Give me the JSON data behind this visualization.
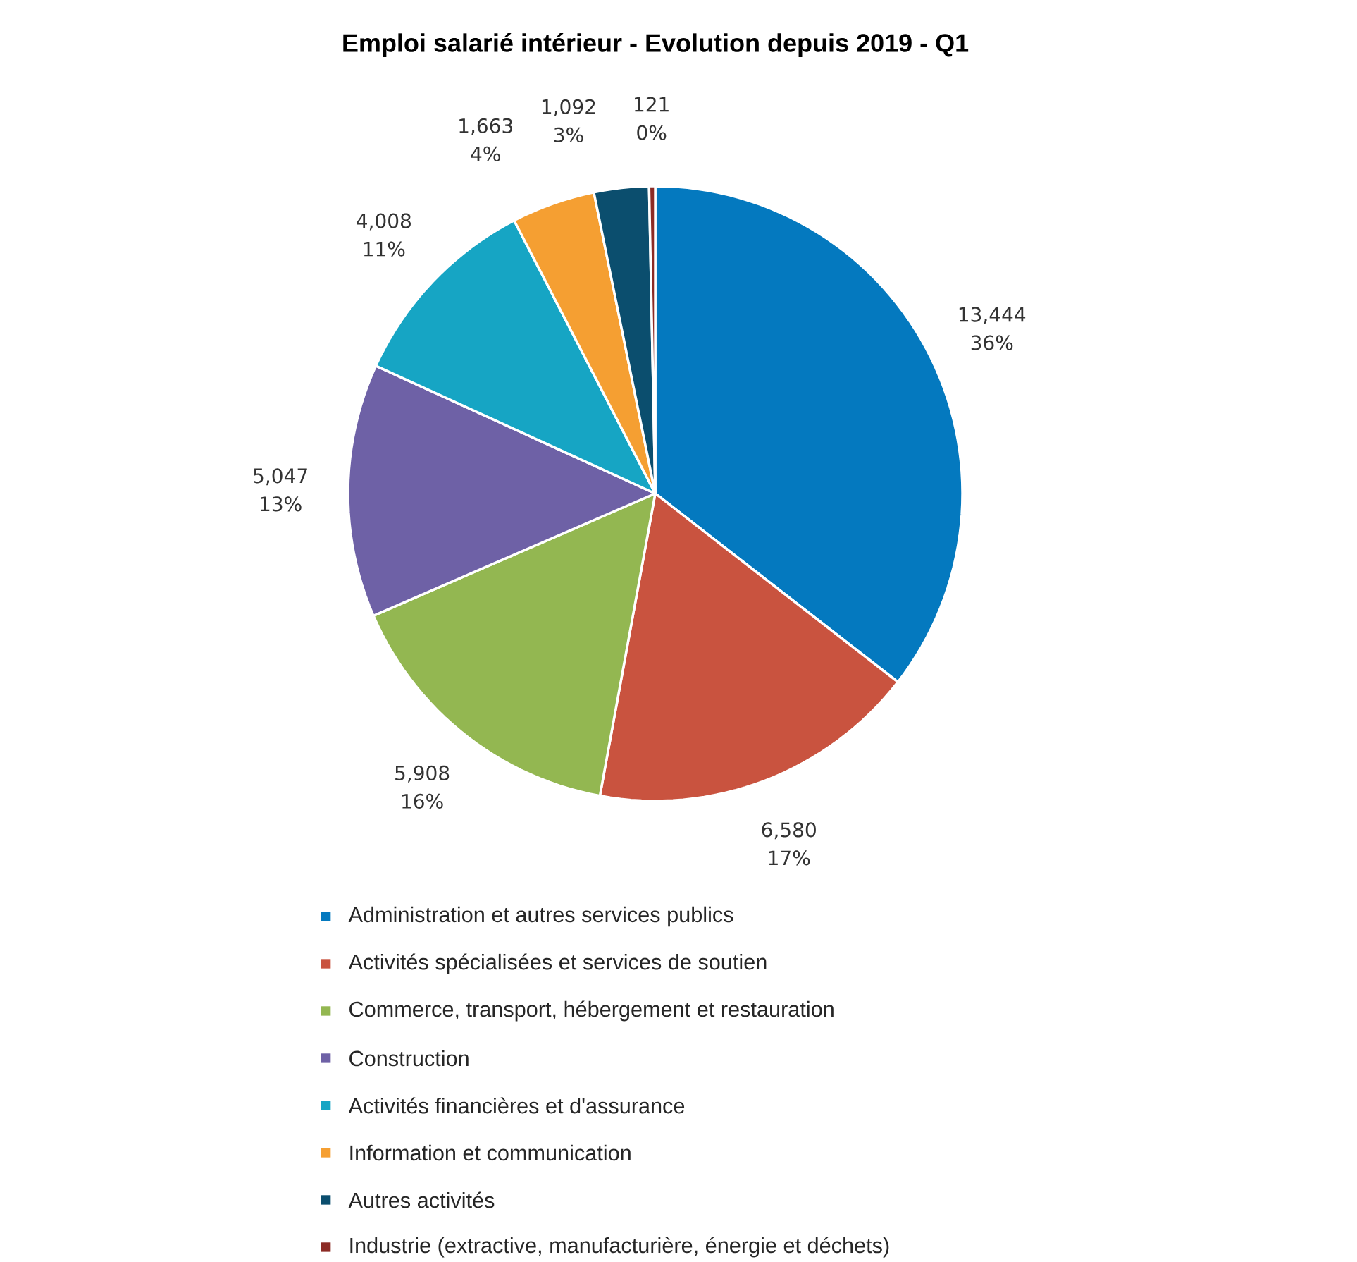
{
  "chart_data": {
    "type": "pie",
    "title": "Emploi salarié intérieur - Evolution depuis 2019 - Q1",
    "categories": [
      "Administration et autres services publics",
      "Activités spécialisées et services de soutien",
      "Commerce, transport, hébergement et restauration",
      "Construction",
      "Activités financières et d'assurance",
      "Information et communication",
      "Autres activités",
      "Industrie (extractive, manufacturière, énergie et déchets)"
    ],
    "values": [
      13444,
      6580,
      5908,
      5047,
      4008,
      1663,
      1092,
      121
    ],
    "value_labels": [
      "13,444 36%",
      "6,580 17%",
      "5,908 16%",
      "5,047 13%",
      "4,008 11%",
      "1,663 4%",
      "1,092 3%",
      "121 0%"
    ],
    "colors": [
      "#0479bf",
      "#c9533f",
      "#93b751",
      "#6e61a6",
      "#16a5c4",
      "#f59f32",
      "#0b4e6e",
      "#8c2b25"
    ],
    "legend": "bottom"
  }
}
